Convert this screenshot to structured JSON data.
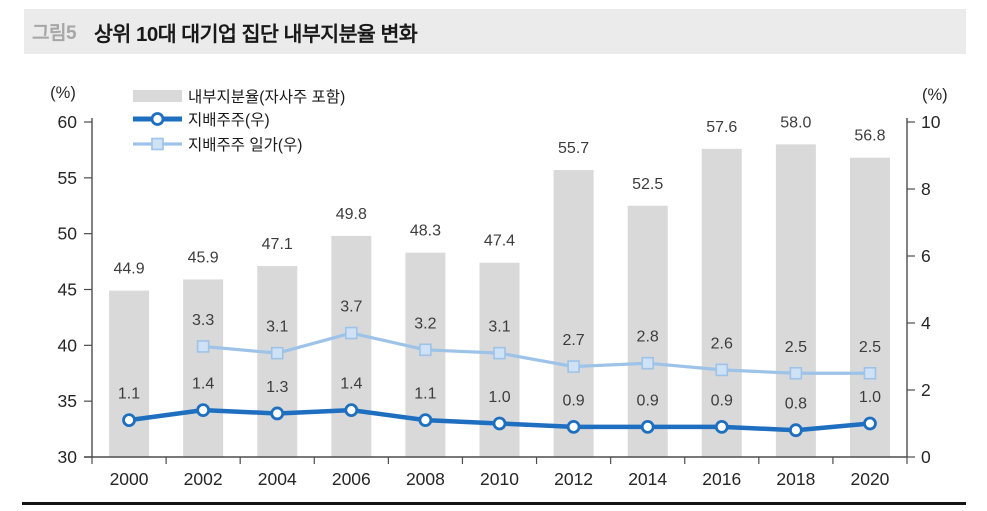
{
  "header": {
    "tag": "그림5",
    "title": "상위 10대 대기업 집단 내부지분율 변화"
  },
  "chart_data": {
    "type": "bar+line combo",
    "title": "상위 10대 대기업 집단 내부지분율 변화",
    "categories": [
      "2000",
      "2002",
      "2004",
      "2006",
      "2008",
      "2010",
      "2012",
      "2014",
      "2016",
      "2018",
      "2020"
    ],
    "series": [
      {
        "name": "내부지분율(자사주 포함)",
        "type": "bar",
        "axis": "left",
        "color": "#d9d9d9",
        "values": [
          44.9,
          45.9,
          47.1,
          49.8,
          48.3,
          47.4,
          55.7,
          52.5,
          57.6,
          58.0,
          56.8
        ]
      },
      {
        "name": "지배주주(우)",
        "type": "line",
        "axis": "right",
        "color": "#1e6fbf",
        "marker": "circle",
        "marker_fill": "#ffffff",
        "values": [
          1.1,
          1.4,
          1.3,
          1.4,
          1.1,
          1.0,
          0.9,
          0.9,
          0.9,
          0.8,
          1.0
        ]
      },
      {
        "name": "지배주주 일가(우)",
        "type": "line",
        "axis": "right",
        "color": "#9dc3e9",
        "marker": "square",
        "marker_fill": "#cfe2f5",
        "values": [
          null,
          3.3,
          3.1,
          3.7,
          3.2,
          3.1,
          2.7,
          2.8,
          2.6,
          2.5,
          2.5
        ]
      }
    ],
    "left_axis": {
      "unit": "(%)",
      "min": 30,
      "max": 60,
      "ticks": [
        30,
        35,
        40,
        45,
        50,
        55,
        60
      ]
    },
    "right_axis": {
      "unit": "(%)",
      "min": 0,
      "max": 10,
      "ticks": [
        0,
        2,
        4,
        6,
        8,
        10
      ]
    },
    "legend_position": "top-left",
    "grid": false,
    "label_decimals": 1,
    "axis_color": "#4d4d4d",
    "tick_label_color": "#262626",
    "data_label_color": "#3d3d3d"
  }
}
